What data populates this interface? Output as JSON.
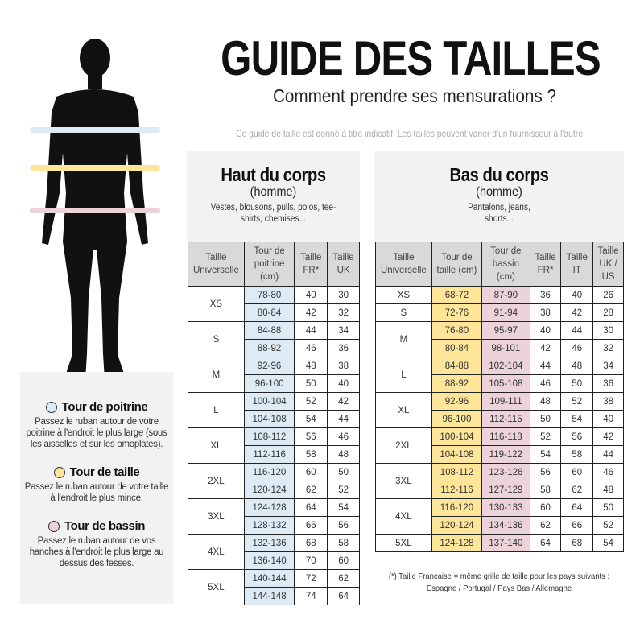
{
  "header": {
    "title": "GUIDE DES TAILLES",
    "subtitle": "Comment prendre ses mensurations ?",
    "disclaimer": "Ce guide de taille est donné à titre indicatif. Les tailles peuvent varier d'un fournisseur à l'autre."
  },
  "colors": {
    "chest": "#ddebf5",
    "waist": "#fde59a",
    "hips": "#ecd3da",
    "panel": "#f2f2f2",
    "header": "#d9d9d9"
  },
  "legend": [
    {
      "title": "Tour de poitrine",
      "text": "Passez le ruban autour de votre poitrine à l'endroit le plus large (sous les aisselles et sur les omoplates).",
      "color": "#ddebf5"
    },
    {
      "title": "Tour de taille",
      "text": "Passez le ruban autour de votre taille à l'endroit le plus mince.",
      "color": "#fde59a"
    },
    {
      "title": "Tour de bassin",
      "text": "Passez le ruban autour de vos hanches à l'endroit le plus large au dessus des fesses.",
      "color": "#ecd3da"
    }
  ],
  "upper": {
    "title": "Haut du corps",
    "gender": "(homme)",
    "desc": "Vestes, blousons, pulls, polos, tee-shirts, chemises...",
    "columns": [
      "Taille Universelle",
      "Tour de poitrine (cm)",
      "Taille FR*",
      "Taille UK"
    ],
    "groups": [
      {
        "size": "XS",
        "rows": [
          [
            "78-80",
            "40",
            "30"
          ],
          [
            "80-84",
            "42",
            "32"
          ]
        ]
      },
      {
        "size": "S",
        "rows": [
          [
            "84-88",
            "44",
            "34"
          ],
          [
            "88-92",
            "46",
            "36"
          ]
        ]
      },
      {
        "size": "M",
        "rows": [
          [
            "92-96",
            "48",
            "38"
          ],
          [
            "96-100",
            "50",
            "40"
          ]
        ]
      },
      {
        "size": "L",
        "rows": [
          [
            "100-104",
            "52",
            "42"
          ],
          [
            "104-108",
            "54",
            "44"
          ]
        ]
      },
      {
        "size": "XL",
        "rows": [
          [
            "108-112",
            "56",
            "46"
          ],
          [
            "112-116",
            "58",
            "48"
          ]
        ]
      },
      {
        "size": "2XL",
        "rows": [
          [
            "116-120",
            "60",
            "50"
          ],
          [
            "120-124",
            "62",
            "52"
          ]
        ]
      },
      {
        "size": "3XL",
        "rows": [
          [
            "124-128",
            "64",
            "54"
          ],
          [
            "128-132",
            "66",
            "56"
          ]
        ]
      },
      {
        "size": "4XL",
        "rows": [
          [
            "132-136",
            "68",
            "58"
          ],
          [
            "136-140",
            "70",
            "60"
          ]
        ]
      },
      {
        "size": "5XL",
        "rows": [
          [
            "140-144",
            "72",
            "62"
          ],
          [
            "144-148",
            "74",
            "64"
          ]
        ]
      }
    ]
  },
  "lower": {
    "title": "Bas du corps",
    "gender": "(homme)",
    "desc": "Pantalons, jeans, shorts...",
    "columns": [
      "Taille Universelle",
      "Tour de taille (cm)",
      "Tour de bassin (cm)",
      "Taille FR*",
      "Taille IT",
      "Taille UK / US"
    ],
    "groups": [
      {
        "size": "XS",
        "rows": [
          [
            "68-72",
            "87-90",
            "36",
            "40",
            "26"
          ]
        ]
      },
      {
        "size": "S",
        "rows": [
          [
            "72-76",
            "91-94",
            "38",
            "42",
            "28"
          ]
        ]
      },
      {
        "size": "M",
        "rows": [
          [
            "76-80",
            "95-97",
            "40",
            "44",
            "30"
          ],
          [
            "80-84",
            "98-101",
            "42",
            "46",
            "32"
          ]
        ]
      },
      {
        "size": "L",
        "rows": [
          [
            "84-88",
            "102-104",
            "44",
            "48",
            "34"
          ],
          [
            "88-92",
            "105-108",
            "46",
            "50",
            "36"
          ]
        ]
      },
      {
        "size": "XL",
        "rows": [
          [
            "92-96",
            "109-111",
            "48",
            "52",
            "38"
          ],
          [
            "96-100",
            "112-115",
            "50",
            "54",
            "40"
          ]
        ]
      },
      {
        "size": "2XL",
        "rows": [
          [
            "100-104",
            "116-118",
            "52",
            "56",
            "42"
          ],
          [
            "104-108",
            "119-122",
            "54",
            "58",
            "44"
          ]
        ]
      },
      {
        "size": "3XL",
        "rows": [
          [
            "108-112",
            "123-126",
            "56",
            "60",
            "46"
          ],
          [
            "112-116",
            "127-129",
            "58",
            "62",
            "48"
          ]
        ]
      },
      {
        "size": "4XL",
        "rows": [
          [
            "116-120",
            "130-133",
            "60",
            "64",
            "50"
          ],
          [
            "120-124",
            "134-136",
            "62",
            "66",
            "52"
          ]
        ]
      },
      {
        "size": "5XL",
        "rows": [
          [
            "124-128",
            "137-140",
            "64",
            "68",
            "54"
          ]
        ]
      }
    ],
    "footnote_line1": "(*) Taille Française = même grille de taille pour les pays suivants :",
    "footnote_line2": "Espagne / Portugal / Pays Bas / Allemagne"
  }
}
